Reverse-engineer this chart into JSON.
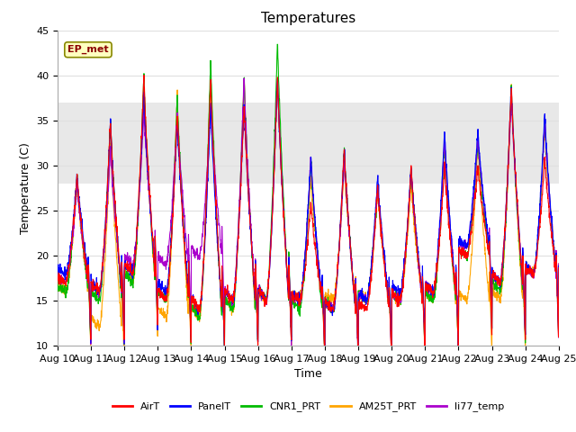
{
  "title": "Temperatures",
  "xlabel": "Time",
  "ylabel": "Temperature (C)",
  "ylim": [
    10,
    45
  ],
  "x_tick_labels": [
    "Aug 10",
    "Aug 11",
    "Aug 12",
    "Aug 13",
    "Aug 14",
    "Aug 15",
    "Aug 16",
    "Aug 17",
    "Aug 18",
    "Aug 19",
    "Aug 20",
    "Aug 21",
    "Aug 22",
    "Aug 23",
    "Aug 24",
    "Aug 25"
  ],
  "shaded_band": [
    28,
    37
  ],
  "annotation_text": "EP_met",
  "line_colors": {
    "AirT": "#FF0000",
    "PanelT": "#0000FF",
    "CNR1_PRT": "#00BB00",
    "AM25T_PRT": "#FFA500",
    "li77_temp": "#AA00CC"
  },
  "legend_labels": [
    "AirT",
    "PanelT",
    "CNR1_PRT",
    "AM25T_PRT",
    "li77_temp"
  ],
  "background_color": "#FFFFFF",
  "plot_bg_color": "#FFFFFF",
  "shaded_color": "#E8E8E8",
  "grid_color": "#E0E0E0",
  "title_fontsize": 11,
  "axis_label_fontsize": 9,
  "tick_fontsize": 8,
  "n_days": 15,
  "pts_per_day": 144,
  "air_maxes": [
    29,
    35,
    40,
    36,
    40,
    37,
    40,
    26,
    32,
    28,
    30,
    30,
    30,
    39,
    31
  ],
  "air_mins": [
    17,
    16,
    18,
    15,
    14,
    15,
    15,
    15,
    14,
    14,
    15,
    16,
    20,
    17,
    18
  ],
  "panel_maxes": [
    29,
    35,
    38,
    35,
    37,
    37,
    40,
    31,
    32,
    29,
    30,
    34,
    34,
    39,
    36
  ],
  "panel_mins": [
    18,
    16,
    18,
    16,
    14,
    15,
    15,
    15,
    14,
    15,
    16,
    16,
    21,
    17,
    18
  ],
  "cnr_maxes": [
    29,
    35,
    40,
    38,
    42,
    40,
    44,
    31,
    32,
    28,
    30,
    33,
    33,
    39,
    35
  ],
  "cnr_mins": [
    16,
    15,
    17,
    15,
    13,
    14,
    15,
    14,
    14,
    15,
    15,
    15,
    20,
    16,
    18
  ],
  "am_maxes": [
    28,
    33,
    38,
    38,
    40,
    40,
    40,
    29,
    30,
    27,
    28,
    33,
    33,
    39,
    35
  ],
  "am_mins": [
    16,
    12,
    17,
    13,
    13,
    14,
    15,
    15,
    15,
    15,
    15,
    15,
    15,
    15,
    18
  ],
  "li_maxes": [
    28,
    32,
    36,
    36,
    37,
    40,
    40,
    31,
    31,
    28,
    30,
    33,
    33,
    38,
    35
  ],
  "li_mins": [
    17,
    16,
    19,
    19,
    20,
    15,
    15,
    15,
    14,
    15,
    15,
    16,
    21,
    17,
    18
  ]
}
